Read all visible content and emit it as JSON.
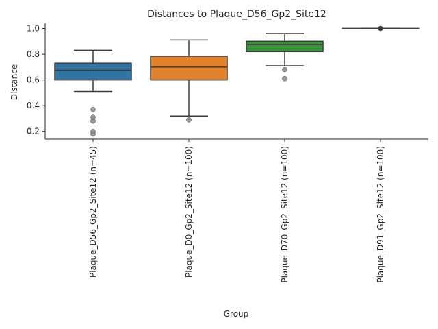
{
  "chart_data": {
    "type": "box",
    "title": "Distances to Plaque_D56_Gp2_Site12",
    "xlabel": "Group",
    "ylabel": "Distance",
    "ylim": [
      0.14,
      1.04
    ],
    "yticks": [
      0.2,
      0.4,
      0.6,
      0.8,
      1.0
    ],
    "ytick_labels": [
      "0.2",
      "0.4",
      "0.6",
      "0.8",
      "1.0"
    ],
    "grid": false,
    "categories": [
      "Plaque_D56_Gp2_Site12 (n=45)",
      "Plaque_D0_Gp2_Site12 (n=100)",
      "Plaque_D70_Gp2_Site12 (n=100)",
      "Plaque_D91_Gp2_Site12 (n=100)"
    ],
    "boxes": [
      {
        "whisker_low": 0.51,
        "q1": 0.6,
        "median": 0.675,
        "q3": 0.73,
        "whisker_high": 0.83,
        "outliers": [
          0.37,
          0.31,
          0.28,
          0.2,
          0.18
        ],
        "color": "#3274a1"
      },
      {
        "whisker_low": 0.32,
        "q1": 0.6,
        "median": 0.7,
        "q3": 0.785,
        "whisker_high": 0.91,
        "outliers": [
          0.29
        ],
        "color": "#e1812c"
      },
      {
        "whisker_low": 0.71,
        "q1": 0.82,
        "median": 0.875,
        "q3": 0.9,
        "whisker_high": 0.96,
        "outliers": [
          0.68,
          0.61
        ],
        "color": "#3a923a"
      },
      {
        "whisker_low": 1.0,
        "q1": 1.0,
        "median": 1.0,
        "q3": 1.0,
        "whisker_high": 1.0,
        "outliers": [
          1.0
        ],
        "color": "#c03d3e"
      }
    ]
  }
}
